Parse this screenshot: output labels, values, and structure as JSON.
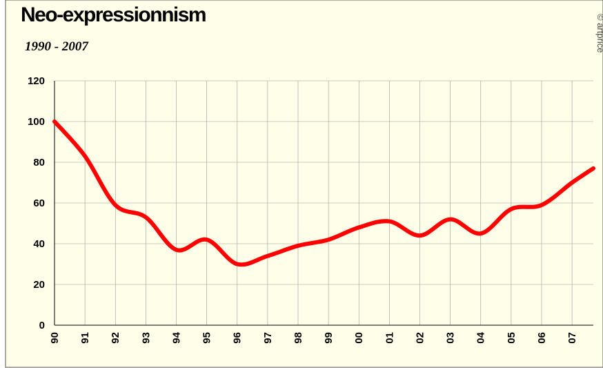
{
  "chart_data": {
    "type": "line",
    "title": "Neo-expressionnism",
    "subtitle": "1990 - 2007",
    "credit": "© artprice",
    "x": [
      1990,
      1991,
      1992,
      1993,
      1994,
      1995,
      1996,
      1997,
      1998,
      1999,
      2000,
      2001,
      2002,
      2003,
      2004,
      2005,
      2006,
      2007,
      2007.7
    ],
    "values": [
      100,
      83,
      59,
      53,
      37,
      42,
      30,
      34,
      39,
      42,
      48,
      51,
      44,
      52,
      45,
      57,
      59,
      70,
      77
    ],
    "color": "#ff0000",
    "xlim": [
      1990,
      2007.7
    ],
    "xticks": [
      {
        "value": 1990,
        "label": "90"
      },
      {
        "value": 1991,
        "label": "91"
      },
      {
        "value": 1992,
        "label": "92"
      },
      {
        "value": 1993,
        "label": "93"
      },
      {
        "value": 1994,
        "label": "94"
      },
      {
        "value": 1995,
        "label": "95"
      },
      {
        "value": 1996,
        "label": "96"
      },
      {
        "value": 1997,
        "label": "97"
      },
      {
        "value": 1998,
        "label": "98"
      },
      {
        "value": 1999,
        "label": "99"
      },
      {
        "value": 2000,
        "label": "00"
      },
      {
        "value": 2001,
        "label": "01"
      },
      {
        "value": 2002,
        "label": "02"
      },
      {
        "value": 2003,
        "label": "03"
      },
      {
        "value": 2004,
        "label": "04"
      },
      {
        "value": 2005,
        "label": "05"
      },
      {
        "value": 2006,
        "label": "06"
      },
      {
        "value": 2007,
        "label": "07"
      }
    ],
    "ylim": [
      0,
      120
    ],
    "yticks": [
      0,
      20,
      40,
      60,
      80,
      100,
      120
    ],
    "grid": true
  }
}
